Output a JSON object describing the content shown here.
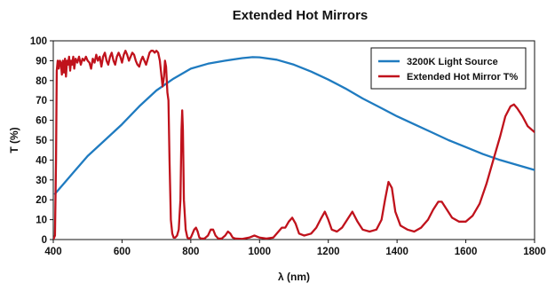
{
  "chart_data": {
    "type": "line",
    "title": "Extended Hot Mirrors",
    "xlabel": "λ (nm)",
    "ylabel": "T (%)",
    "xlim": [
      400,
      1800
    ],
    "ylim": [
      0,
      100
    ],
    "x_ticks": [
      400,
      600,
      800,
      1000,
      1200,
      1400,
      1600,
      1800
    ],
    "x_tick_labels": [
      "400",
      "600",
      "800",
      "1000",
      "1200",
      "1400",
      "1600",
      "1800"
    ],
    "y_ticks": [
      0,
      10,
      20,
      30,
      40,
      50,
      60,
      70,
      80,
      90,
      100
    ],
    "y_tick_labels": [
      "0",
      "10",
      "20",
      "30",
      "40",
      "50",
      "60",
      "70",
      "80",
      "90",
      "100"
    ],
    "grid": false,
    "legend_position": "top-right",
    "series": [
      {
        "name": "3200K Light Source",
        "color": "#1f7bc0",
        "points": [
          [
            405,
            23
          ],
          [
            430,
            28
          ],
          [
            460,
            34
          ],
          [
            500,
            42
          ],
          [
            550,
            50
          ],
          [
            600,
            58
          ],
          [
            650,
            67
          ],
          [
            700,
            75
          ],
          [
            750,
            81
          ],
          [
            800,
            86
          ],
          [
            850,
            88.5
          ],
          [
            900,
            90
          ],
          [
            950,
            91.3
          ],
          [
            980,
            91.8
          ],
          [
            1000,
            91.7
          ],
          [
            1050,
            90.5
          ],
          [
            1100,
            88
          ],
          [
            1150,
            84.5
          ],
          [
            1200,
            80.5
          ],
          [
            1250,
            76
          ],
          [
            1300,
            71
          ],
          [
            1350,
            66.5
          ],
          [
            1400,
            62
          ],
          [
            1450,
            58
          ],
          [
            1500,
            54
          ],
          [
            1550,
            50
          ],
          [
            1600,
            46.5
          ],
          [
            1650,
            43
          ],
          [
            1700,
            40
          ],
          [
            1750,
            37.5
          ],
          [
            1800,
            35
          ]
        ]
      },
      {
        "name": "Extended Hot Mirror T%",
        "color": "#c0121c",
        "points": [
          [
            400,
            0
          ],
          [
            405,
            2
          ],
          [
            408,
            40
          ],
          [
            410,
            85
          ],
          [
            413,
            90
          ],
          [
            416,
            86
          ],
          [
            419,
            90
          ],
          [
            422,
            89
          ],
          [
            425,
            83
          ],
          [
            428,
            90
          ],
          [
            431,
            84
          ],
          [
            434,
            91
          ],
          [
            437,
            82
          ],
          [
            440,
            90
          ],
          [
            443,
            88
          ],
          [
            446,
            92
          ],
          [
            449,
            85
          ],
          [
            452,
            90
          ],
          [
            455,
            88
          ],
          [
            458,
            92
          ],
          [
            461,
            86
          ],
          [
            465,
            91
          ],
          [
            470,
            89
          ],
          [
            475,
            92
          ],
          [
            480,
            88
          ],
          [
            485,
            91
          ],
          [
            490,
            90
          ],
          [
            495,
            92
          ],
          [
            500,
            90
          ],
          [
            505,
            89
          ],
          [
            510,
            86
          ],
          [
            515,
            91
          ],
          [
            520,
            89
          ],
          [
            525,
            93
          ],
          [
            530,
            90
          ],
          [
            535,
            92
          ],
          [
            540,
            87
          ],
          [
            545,
            92
          ],
          [
            550,
            94
          ],
          [
            555,
            90
          ],
          [
            560,
            88
          ],
          [
            565,
            92
          ],
          [
            570,
            94
          ],
          [
            575,
            90
          ],
          [
            580,
            88
          ],
          [
            585,
            92
          ],
          [
            590,
            94
          ],
          [
            595,
            92
          ],
          [
            600,
            89
          ],
          [
            605,
            93
          ],
          [
            610,
            95
          ],
          [
            615,
            93
          ],
          [
            620,
            90
          ],
          [
            625,
            92
          ],
          [
            630,
            94
          ],
          [
            635,
            93
          ],
          [
            640,
            90
          ],
          [
            645,
            88
          ],
          [
            650,
            87
          ],
          [
            655,
            90
          ],
          [
            660,
            92
          ],
          [
            665,
            90
          ],
          [
            670,
            88
          ],
          [
            675,
            91
          ],
          [
            680,
            94
          ],
          [
            685,
            95
          ],
          [
            690,
            95
          ],
          [
            695,
            94
          ],
          [
            700,
            95
          ],
          [
            705,
            94
          ],
          [
            710,
            90
          ],
          [
            715,
            82
          ],
          [
            718,
            77
          ],
          [
            722,
            82
          ],
          [
            725,
            90
          ],
          [
            728,
            87
          ],
          [
            732,
            74
          ],
          [
            735,
            70
          ],
          [
            738,
            40
          ],
          [
            742,
            10
          ],
          [
            746,
            3
          ],
          [
            750,
            1
          ],
          [
            755,
            1
          ],
          [
            760,
            2
          ],
          [
            765,
            5
          ],
          [
            770,
            20
          ],
          [
            773,
            55
          ],
          [
            775,
            65
          ],
          [
            777,
            55
          ],
          [
            780,
            20
          ],
          [
            785,
            5
          ],
          [
            790,
            1
          ],
          [
            795,
            0.5
          ],
          [
            800,
            1
          ],
          [
            805,
            3
          ],
          [
            810,
            5
          ],
          [
            815,
            6
          ],
          [
            820,
            4
          ],
          [
            825,
            1
          ],
          [
            830,
            0.5
          ],
          [
            840,
            0.5
          ],
          [
            850,
            2
          ],
          [
            858,
            5
          ],
          [
            865,
            5
          ],
          [
            872,
            2
          ],
          [
            880,
            0.5
          ],
          [
            890,
            0.5
          ],
          [
            900,
            2
          ],
          [
            908,
            4
          ],
          [
            915,
            3
          ],
          [
            922,
            1
          ],
          [
            930,
            0.5
          ],
          [
            950,
            0.3
          ],
          [
            970,
            1
          ],
          [
            985,
            2
          ],
          [
            1000,
            1
          ],
          [
            1020,
            0.5
          ],
          [
            1040,
            1
          ],
          [
            1055,
            4
          ],
          [
            1065,
            6
          ],
          [
            1075,
            6
          ],
          [
            1085,
            9
          ],
          [
            1095,
            11
          ],
          [
            1105,
            8
          ],
          [
            1115,
            3
          ],
          [
            1130,
            2
          ],
          [
            1150,
            3
          ],
          [
            1165,
            6
          ],
          [
            1180,
            11
          ],
          [
            1190,
            14
          ],
          [
            1200,
            10
          ],
          [
            1210,
            5
          ],
          [
            1225,
            4
          ],
          [
            1240,
            6
          ],
          [
            1255,
            10
          ],
          [
            1270,
            14
          ],
          [
            1285,
            9
          ],
          [
            1300,
            5
          ],
          [
            1320,
            4
          ],
          [
            1340,
            5
          ],
          [
            1355,
            10
          ],
          [
            1365,
            20
          ],
          [
            1375,
            29
          ],
          [
            1385,
            26
          ],
          [
            1395,
            14
          ],
          [
            1410,
            7
          ],
          [
            1430,
            5
          ],
          [
            1450,
            4
          ],
          [
            1470,
            6
          ],
          [
            1490,
            10
          ],
          [
            1505,
            15
          ],
          [
            1520,
            19
          ],
          [
            1530,
            19
          ],
          [
            1545,
            15
          ],
          [
            1560,
            11
          ],
          [
            1580,
            9
          ],
          [
            1600,
            9
          ],
          [
            1620,
            12
          ],
          [
            1640,
            18
          ],
          [
            1660,
            28
          ],
          [
            1680,
            40
          ],
          [
            1700,
            52
          ],
          [
            1715,
            62
          ],
          [
            1730,
            67
          ],
          [
            1740,
            68
          ],
          [
            1750,
            66
          ],
          [
            1765,
            62
          ],
          [
            1780,
            57
          ],
          [
            1800,
            54
          ]
        ]
      }
    ]
  }
}
